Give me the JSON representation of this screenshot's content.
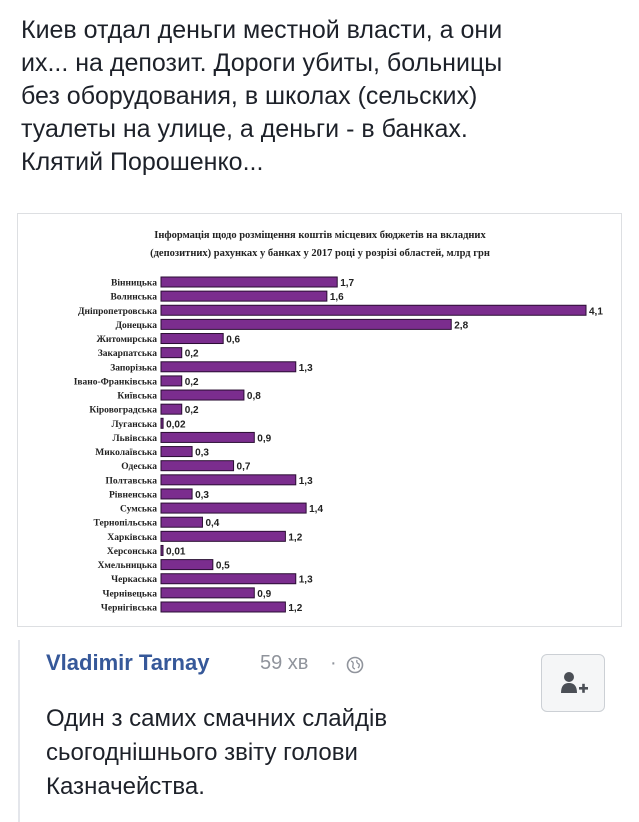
{
  "post": {
    "text_lines": [
      "Киев отдал деньги местной власти, а они",
      "их... на депозит. Дороги убиты, больницы",
      "без оборудования, в школах (сельских)",
      "туалеты на улице, а деньги - в банках.",
      "Клятий Порошенко..."
    ]
  },
  "chart_data": {
    "type": "bar",
    "orientation": "horizontal",
    "title": "Інформація щодо розміщення коштів місцевих бюджетів на вкладних (депозитних) рахунках у банках у 2017 році у розрізі областей, млрд грн",
    "title_lines": [
      "Інформація щодо розміщення коштів місцевих бюджетів на вкладних",
      "(депозитних) рахунках у банках у 2017 році у розрізі областей, млрд грн"
    ],
    "categories": [
      "Вінницька",
      "Волинська",
      "Дніпропетровська",
      "Донецька",
      "Житомирська",
      "Закарпатська",
      "Запорізька",
      "Івано-Франківська",
      "Київська",
      "Кіровоградська",
      "Луганська",
      "Львівська",
      "Миколаївська",
      "Одеська",
      "Полтавська",
      "Рівненська",
      "Сумська",
      "Тернопільська",
      "Харківська",
      "Херсонська",
      "Хмельницька",
      "Черкаська",
      "Чернівецька",
      "Чернігівська"
    ],
    "values": [
      1.7,
      1.6,
      4.1,
      2.8,
      0.6,
      0.2,
      1.3,
      0.2,
      0.8,
      0.2,
      0.02,
      0.9,
      0.3,
      0.7,
      1.3,
      0.3,
      1.4,
      0.4,
      1.2,
      0.01,
      0.5,
      1.3,
      0.9,
      1.2
    ],
    "value_labels": [
      "1,7",
      "1,6",
      "4,1",
      "2,8",
      "0,6",
      "0,2",
      "1,3",
      "0,2",
      "0,8",
      "0,2",
      "0,02",
      "0,9",
      "0,3",
      "0,7",
      "1,3",
      "0,3",
      "1,4",
      "0,4",
      "1,2",
      "0,01",
      "0,5",
      "1,3",
      "0,9",
      "1,2"
    ],
    "xlim": [
      0,
      4.1
    ],
    "bar_color": "#7b2d8e",
    "bar_border": "#2a0e33",
    "grid": false,
    "legend": "none"
  },
  "comment": {
    "author": "Vladimir Tarnay",
    "time": "59 хв",
    "separator": "·",
    "body_lines": [
      "Один з самих смачних слайдів",
      "сьогоднішнього звіту голови",
      "Казначейства."
    ]
  },
  "colors": {
    "author_link": "#365899",
    "meta_gray": "#90949c",
    "text": "#1d2129"
  },
  "icons": {
    "privacy": "globe-icon",
    "add_friend": "add-friend-icon"
  }
}
